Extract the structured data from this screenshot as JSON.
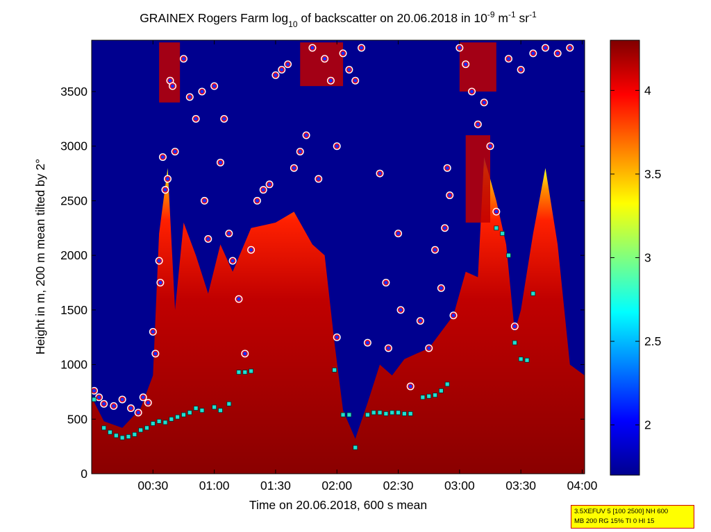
{
  "chart_data": {
    "type": "heatmap",
    "title_parts": {
      "pre": "GRAINEX Rogers Farm log",
      "sub": "10",
      "mid": " of backscatter on 20.06.2018 in 10",
      "sup1": "-9",
      "mid2": " m",
      "sup2": "-1",
      "post": " sr",
      "sup3": "-1"
    },
    "xlabel": "Time on 20.06.2018, 600 s mean",
    "ylabel": "Height in m, 200 m mean tilted by 2°",
    "x_tick_labels": [
      "00:30",
      "01:00",
      "01:30",
      "02:00",
      "02:30",
      "03:00",
      "03:30",
      "04:00"
    ],
    "x_ticks_hours": [
      0.5,
      1.0,
      1.5,
      2.0,
      2.5,
      3.0,
      3.5,
      4.0
    ],
    "xlim_hours": [
      0.0,
      4.02
    ],
    "y_ticks": [
      0,
      500,
      1000,
      1500,
      2000,
      2500,
      3000,
      3500
    ],
    "ylim": [
      0,
      3970
    ],
    "colorbar": {
      "ticks": [
        2,
        2.5,
        3,
        3.5,
        4
      ],
      "range": [
        1.7,
        4.3
      ],
      "colormap": "jet"
    },
    "background_color": "#00008f",
    "series": [
      {
        "kind": "cloud_or_layer_detections",
        "marker": "red-dot-white-ring",
        "points": [
          [
            0.02,
            760
          ],
          [
            0.06,
            700
          ],
          [
            0.1,
            640
          ],
          [
            0.18,
            620
          ],
          [
            0.25,
            680
          ],
          [
            0.32,
            600
          ],
          [
            0.38,
            560
          ],
          [
            0.42,
            700
          ],
          [
            0.46,
            650
          ],
          [
            0.5,
            1300
          ],
          [
            0.52,
            1100
          ],
          [
            0.55,
            1950
          ],
          [
            0.56,
            1750
          ],
          [
            0.58,
            2900
          ],
          [
            0.6,
            2600
          ],
          [
            0.62,
            2700
          ],
          [
            0.64,
            3600
          ],
          [
            0.66,
            3550
          ],
          [
            0.68,
            2950
          ],
          [
            0.75,
            3800
          ],
          [
            0.8,
            3450
          ],
          [
            0.85,
            3250
          ],
          [
            0.9,
            3500
          ],
          [
            0.92,
            2500
          ],
          [
            0.95,
            2150
          ],
          [
            1.0,
            3550
          ],
          [
            1.05,
            2850
          ],
          [
            1.08,
            3250
          ],
          [
            1.12,
            2200
          ],
          [
            1.15,
            1950
          ],
          [
            1.2,
            1600
          ],
          [
            1.25,
            1100
          ],
          [
            1.3,
            2050
          ],
          [
            1.35,
            2500
          ],
          [
            1.4,
            2600
          ],
          [
            1.45,
            2650
          ],
          [
            1.5,
            3650
          ],
          [
            1.55,
            3700
          ],
          [
            1.6,
            3750
          ],
          [
            1.65,
            2800
          ],
          [
            1.7,
            2950
          ],
          [
            1.75,
            3100
          ],
          [
            1.8,
            3900
          ],
          [
            1.85,
            2700
          ],
          [
            1.9,
            3800
          ],
          [
            1.95,
            3600
          ],
          [
            2.0,
            3000
          ],
          [
            2.05,
            3850
          ],
          [
            2.1,
            3700
          ],
          [
            2.15,
            3600
          ],
          [
            2.2,
            3900
          ],
          [
            2.0,
            1250
          ],
          [
            2.25,
            1200
          ],
          [
            2.35,
            2750
          ],
          [
            2.4,
            1750
          ],
          [
            2.42,
            1150
          ],
          [
            2.5,
            2200
          ],
          [
            2.52,
            1500
          ],
          [
            2.6,
            800
          ],
          [
            2.68,
            1400
          ],
          [
            2.75,
            1150
          ],
          [
            2.8,
            2050
          ],
          [
            2.85,
            1700
          ],
          [
            2.88,
            2250
          ],
          [
            2.9,
            2800
          ],
          [
            2.92,
            2550
          ],
          [
            2.95,
            1450
          ],
          [
            3.0,
            3900
          ],
          [
            3.05,
            3750
          ],
          [
            3.1,
            3500
          ],
          [
            3.15,
            3200
          ],
          [
            3.2,
            3400
          ],
          [
            3.25,
            3000
          ],
          [
            3.3,
            2400
          ],
          [
            3.4,
            3800
          ],
          [
            3.5,
            3700
          ],
          [
            3.6,
            3850
          ],
          [
            3.7,
            3900
          ],
          [
            3.8,
            3850
          ],
          [
            3.9,
            3900
          ],
          [
            3.45,
            1350
          ]
        ]
      },
      {
        "kind": "boundary_layer_height",
        "marker": "cyan-square",
        "points": [
          [
            0.02,
            680
          ],
          [
            0.1,
            420
          ],
          [
            0.15,
            380
          ],
          [
            0.2,
            350
          ],
          [
            0.25,
            330
          ],
          [
            0.3,
            340
          ],
          [
            0.35,
            360
          ],
          [
            0.4,
            400
          ],
          [
            0.45,
            420
          ],
          [
            0.5,
            460
          ],
          [
            0.55,
            480
          ],
          [
            0.6,
            470
          ],
          [
            0.65,
            500
          ],
          [
            0.7,
            520
          ],
          [
            0.75,
            540
          ],
          [
            0.8,
            560
          ],
          [
            0.85,
            600
          ],
          [
            0.9,
            580
          ],
          [
            1.0,
            610
          ],
          [
            1.05,
            580
          ],
          [
            1.12,
            640
          ],
          [
            1.2,
            930
          ],
          [
            1.25,
            930
          ],
          [
            1.3,
            940
          ],
          [
            1.98,
            950
          ],
          [
            2.05,
            540
          ],
          [
            2.1,
            540
          ],
          [
            2.15,
            240
          ],
          [
            2.25,
            540
          ],
          [
            2.3,
            560
          ],
          [
            2.35,
            560
          ],
          [
            2.4,
            550
          ],
          [
            2.45,
            560
          ],
          [
            2.5,
            560
          ],
          [
            2.55,
            550
          ],
          [
            2.6,
            550
          ],
          [
            2.7,
            700
          ],
          [
            2.75,
            710
          ],
          [
            2.8,
            720
          ],
          [
            2.85,
            760
          ],
          [
            2.9,
            820
          ],
          [
            3.3,
            2250
          ],
          [
            3.35,
            2200
          ],
          [
            3.4,
            2000
          ],
          [
            3.45,
            1200
          ],
          [
            3.5,
            1050
          ],
          [
            3.55,
            1040
          ],
          [
            3.6,
            1650
          ]
        ]
      }
    ]
  },
  "info_box": {
    "line1": "3.5XEFUV 5 [100 2500] NH 600",
    "line2": "MB 200 RG 15% TI 0 HI 15"
  }
}
